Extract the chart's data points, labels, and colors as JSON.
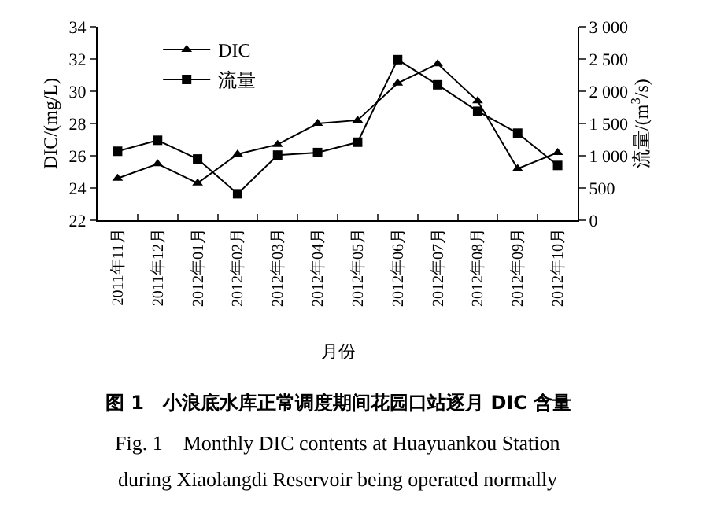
{
  "chart_data": {
    "type": "line",
    "title": "图 1　小浪底水库正常调度期间花园口站逐月 DIC 含量",
    "annotations": [
      "Fig. 1　Monthly DIC contents at Huayuankou Station",
      "during Xiaolangdi Reservoir being operated normally"
    ],
    "xlabel": "月份",
    "ylabel": "DIC/(mg/L)",
    "y2label": "流量/(m$^{3}$/s)",
    "categories": [
      "2011年11月",
      "2011年12月",
      "2012年01月",
      "2012年02月",
      "2012年03月",
      "2012年04月",
      "2012年05月",
      "2012年06月",
      "2012年07月",
      "2012年08月",
      "2012年09月",
      "2012年10月"
    ],
    "series": [
      {
        "name": "DIC",
        "color": "#000000",
        "marker": "triangle",
        "values": [
          24.6,
          25.5,
          24.3,
          26.1,
          26.7,
          28.0,
          28.2,
          30.5,
          31.7,
          29.4,
          25.2,
          26.2
        ]
      },
      {
        "name": "流量",
        "color": "#000000",
        "marker": "square",
        "axis": "y2",
        "values": [
          1070,
          1240,
          950,
          410,
          1010,
          1050,
          1210,
          2490,
          2100,
          1690,
          1350,
          850
        ]
      }
    ],
    "ylim": [
      22,
      34
    ],
    "yticks": [
      22,
      24,
      26,
      28,
      30,
      32,
      34
    ],
    "y2lim": [
      0,
      3000
    ],
    "y2ticks": [
      0,
      {
        "value": 500,
        "label": "500"
      },
      {
        "value": 1000,
        "label": "1 000"
      },
      {
        "value": 1500,
        "label": "1 500"
      },
      {
        "value": 2000,
        "label": "2 000"
      },
      {
        "value": 2500,
        "label": "2 500"
      },
      {
        "value": 3000,
        "label": "3 000"
      }
    ],
    "legend": "top left"
  }
}
